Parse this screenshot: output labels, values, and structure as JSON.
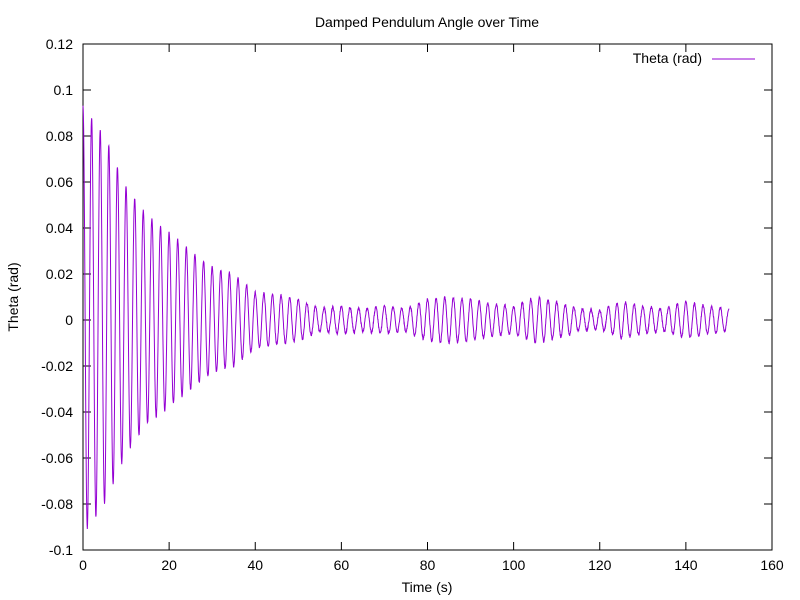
{
  "chart_data": {
    "type": "line",
    "title": "Damped Pendulum Angle over Time",
    "xlabel": "Time (s)",
    "ylabel": "Theta (rad)",
    "xlim": [
      0,
      160
    ],
    "ylim": [
      -0.1,
      0.12
    ],
    "xticks": [
      0,
      20,
      40,
      60,
      80,
      100,
      120,
      140,
      160
    ],
    "xtick_labels": [
      "0",
      "20",
      "40",
      "60",
      "80",
      "100",
      "120",
      "140",
      "160"
    ],
    "yticks": [
      -0.1,
      -0.08,
      -0.06,
      -0.04,
      -0.02,
      0,
      0.02,
      0.04,
      0.06,
      0.08,
      0.1,
      0.12
    ],
    "ytick_labels": [
      "-0.1",
      "-0.08",
      "-0.06",
      "-0.04",
      "-0.02",
      "0",
      "0.02",
      "0.04",
      "0.06",
      "0.08",
      "0.1",
      "0.12"
    ],
    "grid": false,
    "legend_position": "top-right",
    "series": [
      {
        "name": "Theta (rad)",
        "color": "#9400d3",
        "x_start": 0,
        "x_end": 150,
        "period": 2.0,
        "peak_envelope": {
          "t": [
            0,
            5,
            10,
            15,
            20,
            25,
            30,
            35,
            40,
            45,
            50,
            55,
            60,
            65,
            70,
            75,
            80,
            85,
            90,
            95,
            100,
            105,
            110,
            115,
            120,
            125,
            130,
            135,
            140,
            145,
            150
          ],
          "amplitude": [
            0.093,
            0.08,
            0.058,
            0.045,
            0.038,
            0.03,
            0.023,
            0.02,
            0.012,
            0.011,
            0.009,
            0.005,
            0.006,
            0.005,
            0.006,
            0.005,
            0.009,
            0.01,
            0.009,
            0.007,
            0.006,
            0.01,
            0.008,
            0.005,
            0.004,
            0.008,
            0.006,
            0.005,
            0.008,
            0.006,
            0.005
          ]
        }
      }
    ]
  }
}
